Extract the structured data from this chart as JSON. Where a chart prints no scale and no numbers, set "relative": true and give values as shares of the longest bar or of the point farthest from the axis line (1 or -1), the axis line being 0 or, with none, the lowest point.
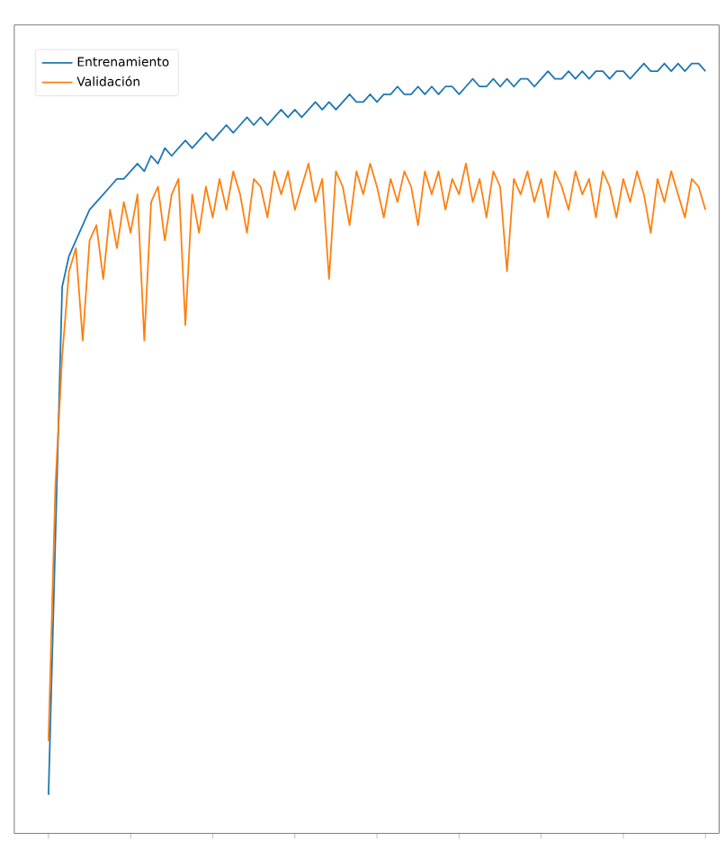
{
  "chart_data": {
    "type": "line",
    "relative": true,
    "legend": "top left",
    "categories": [
      null,
      null,
      null,
      null,
      null,
      null,
      null,
      null,
      null,
      null,
      null,
      null,
      null,
      null,
      null,
      null,
      null,
      null,
      null,
      null,
      null,
      null,
      null,
      null,
      null,
      null,
      null,
      null,
      null,
      null,
      null,
      null,
      null,
      null,
      null,
      null,
      null,
      null,
      null,
      null,
      null,
      null,
      null,
      null,
      null,
      null,
      null,
      null,
      null,
      null,
      null,
      null,
      null,
      null,
      null,
      null,
      null,
      null,
      null,
      null,
      null,
      null,
      null,
      null,
      null,
      null,
      null,
      null,
      null,
      null,
      null,
      null,
      null,
      null,
      null,
      null,
      null,
      null,
      null,
      null,
      null,
      null,
      null,
      null,
      null,
      null,
      null,
      null,
      null,
      null,
      null,
      null,
      null,
      null,
      null,
      null,
      null
    ],
    "series": [
      {
        "name": "Entrenamiento",
        "color": "#1f77b4",
        "values": [
          0.05,
          null,
          0.71,
          0.75,
          0.77,
          0.79,
          0.81,
          0.82,
          0.83,
          0.84,
          0.85,
          0.85,
          0.86,
          0.87,
          0.86,
          0.88,
          0.87,
          0.89,
          0.88,
          0.89,
          0.9,
          0.89,
          0.9,
          0.91,
          0.9,
          0.91,
          0.92,
          0.91,
          0.92,
          0.93,
          0.92,
          0.93,
          0.92,
          0.93,
          0.94,
          0.93,
          0.94,
          0.93,
          0.94,
          0.95,
          0.94,
          0.95,
          0.94,
          0.95,
          0.96,
          0.95,
          0.95,
          0.96,
          0.95,
          0.96,
          0.96,
          0.97,
          0.96,
          0.96,
          0.97,
          0.96,
          0.97,
          0.96,
          0.97,
          0.97,
          0.96,
          0.97,
          0.98,
          0.97,
          0.97,
          0.98,
          0.97,
          0.98,
          0.97,
          0.98,
          0.98,
          0.97,
          0.98,
          0.99,
          0.98,
          0.98,
          0.99,
          0.98,
          0.99,
          0.98,
          0.99,
          0.99,
          0.98,
          0.99,
          0.99,
          0.98,
          0.99,
          1.0,
          0.99,
          0.99,
          1.0,
          0.99,
          1.0,
          0.99,
          1.0,
          1.0,
          0.99
        ]
      },
      {
        "name": "Validación",
        "color": "#ff7f0e",
        "values": [
          0.12,
          0.45,
          0.62,
          0.73,
          0.76,
          0.64,
          0.77,
          0.79,
          0.72,
          0.81,
          0.76,
          0.82,
          0.78,
          0.83,
          0.64,
          0.82,
          0.84,
          0.77,
          0.83,
          0.85,
          0.66,
          0.83,
          0.78,
          0.84,
          0.8,
          0.85,
          0.81,
          0.86,
          0.83,
          0.78,
          0.85,
          0.84,
          0.8,
          0.86,
          0.83,
          0.86,
          0.81,
          0.84,
          0.87,
          0.82,
          0.85,
          0.72,
          0.86,
          0.84,
          0.79,
          0.86,
          0.83,
          0.87,
          0.84,
          0.8,
          0.85,
          0.82,
          0.86,
          0.84,
          0.79,
          0.86,
          0.83,
          0.86,
          0.81,
          0.85,
          0.83,
          0.87,
          0.82,
          0.85,
          0.8,
          0.86,
          0.84,
          0.73,
          0.85,
          0.83,
          0.86,
          0.82,
          0.85,
          0.8,
          0.86,
          0.84,
          0.81,
          0.86,
          0.83,
          0.85,
          0.8,
          0.86,
          0.84,
          0.8,
          0.85,
          0.82,
          0.86,
          0.83,
          0.78,
          0.85,
          0.82,
          0.86,
          0.83,
          0.8,
          0.85,
          0.84,
          0.81
        ]
      }
    ]
  }
}
